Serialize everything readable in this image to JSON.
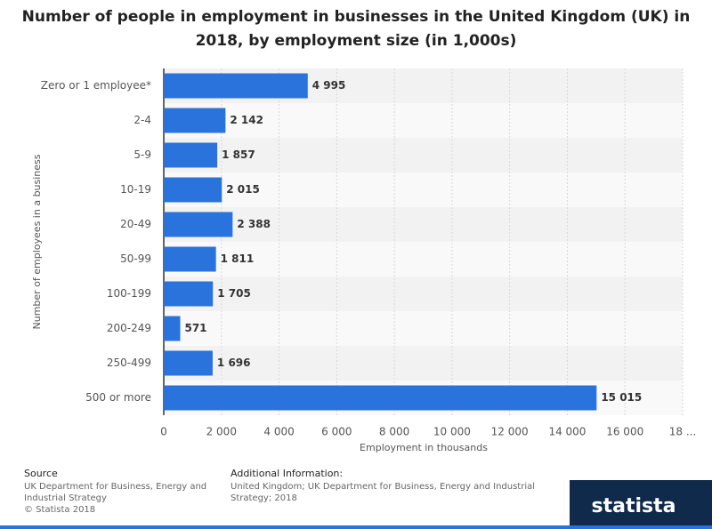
{
  "chart_data": {
    "type": "hbar",
    "title": "Number of people in employment in businesses in the United Kingdom (UK) in 2018, by employment size (in 1,000s)",
    "categories": [
      "Zero or 1 employee*",
      "2-4",
      "5-9",
      "10-19",
      "20-49",
      "50-99",
      "100-199",
      "200-249",
      "250-499",
      "500 or more"
    ],
    "values": [
      4995,
      2142,
      1857,
      2015,
      2388,
      1811,
      1705,
      571,
      1696,
      15015
    ],
    "value_labels": [
      "4 995",
      "2 142",
      "1 857",
      "2 015",
      "2 388",
      "1 811",
      "1 705",
      "571",
      "1 696",
      "15 015"
    ],
    "color": "#2a73dc",
    "xlim": [
      0,
      18000
    ],
    "xticks": [
      0,
      {
        "value": 2000,
        "label": "2 000"
      },
      {
        "value": 4000,
        "label": "4 000"
      },
      {
        "value": 6000,
        "label": "6 000"
      },
      {
        "value": 8000,
        "label": "8 000"
      },
      {
        "value": 10000,
        "label": "10 000"
      },
      {
        "value": 12000,
        "label": "12 000"
      },
      {
        "value": 14000,
        "label": "14 000"
      },
      {
        "value": 16000,
        "label": "16 000"
      },
      {
        "value": 18000,
        "label": "18 ..."
      }
    ],
    "xlabel": "Employment in thousands",
    "ylabel": "Number of employees in a business",
    "grid": true
  },
  "footer": {
    "source_title": "Source",
    "source_lines": [
      "UK Department for Business, Energy and",
      "Industrial Strategy",
      "© Statista 2018"
    ],
    "info_title": "Additional Information:",
    "info_lines": [
      "United Kingdom; UK Department for Business, Energy and Industrial",
      "Strategy; 2018"
    ],
    "logo": "statista"
  }
}
